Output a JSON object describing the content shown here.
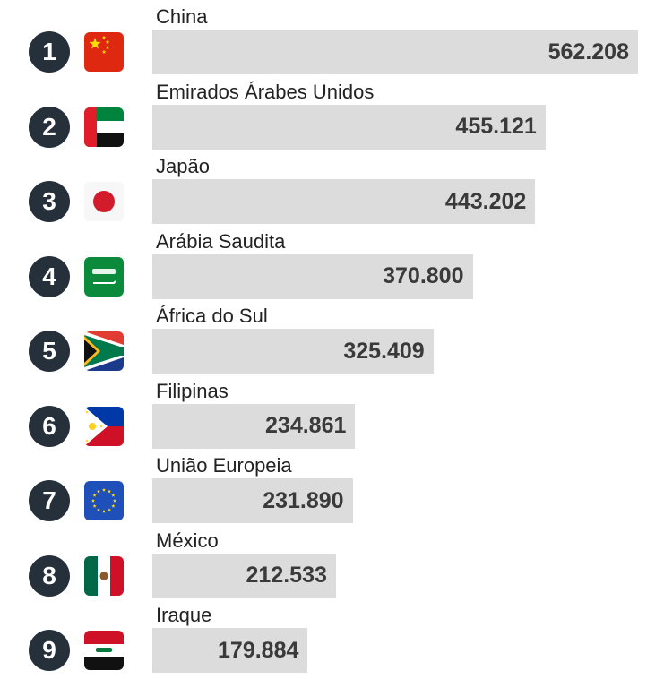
{
  "chart_data": {
    "type": "bar",
    "orientation": "horizontal",
    "categories": [
      "China",
      "Emirados Árabes Unidos",
      "Japão",
      "Arábia Saudita",
      "África do Sul",
      "Filipinas",
      "União Europeia",
      "México",
      "Iraque"
    ],
    "values": [
      562208,
      455121,
      443202,
      370800,
      325409,
      234861,
      231890,
      212533,
      179884
    ],
    "value_labels": [
      "562.208",
      "455.121",
      "443.202",
      "370.800",
      "325.409",
      "234.861",
      "231.890",
      "212.533",
      "179.884"
    ],
    "ranks": [
      "1",
      "2",
      "3",
      "4",
      "5",
      "6",
      "7",
      "8",
      "9"
    ],
    "flags": [
      "china-flag",
      "uae-flag",
      "japan-flag",
      "saudi-arabia-flag",
      "south-africa-flag",
      "philippines-flag",
      "european-union-flag",
      "mexico-flag",
      "iraq-flag"
    ],
    "colors": {
      "bar": "#dcdcdc",
      "rank_badge": "#25303b",
      "value_text": "#3a3a3a"
    }
  }
}
